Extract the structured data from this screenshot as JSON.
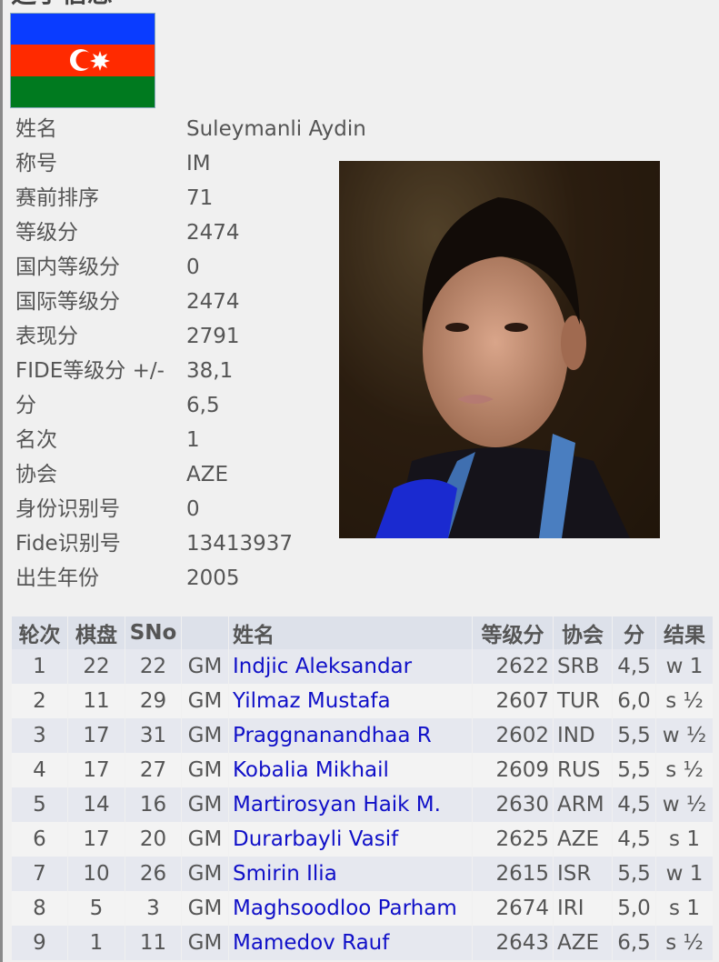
{
  "heading": "选手信息",
  "flag": {
    "country": "Azerbaijan",
    "colors": [
      "#0a3cff",
      "#ff2a00",
      "#007a1f"
    ]
  },
  "player": [
    {
      "label": "姓名",
      "value": "Suleymanli Aydin"
    },
    {
      "label": "称号",
      "value": "IM"
    },
    {
      "label": "赛前排序",
      "value": "71"
    },
    {
      "label": "等级分",
      "value": "2474"
    },
    {
      "label": "国内等级分",
      "value": "0"
    },
    {
      "label": "国际等级分",
      "value": "2474"
    },
    {
      "label": "表现分",
      "value": "2791"
    },
    {
      "label": "FIDE等级分 +/-",
      "value": "38,1"
    },
    {
      "label": "分",
      "value": "6,5"
    },
    {
      "label": "名次",
      "value": "1"
    },
    {
      "label": "协会",
      "value": "AZE"
    },
    {
      "label": "身份识别号",
      "value": "0"
    },
    {
      "label": "Fide识别号",
      "value": "13413937"
    },
    {
      "label": "出生年份",
      "value": "2005"
    }
  ],
  "table": {
    "headers": [
      "轮次",
      "棋盘",
      "SNo",
      "",
      "姓名",
      "等级分",
      "协会",
      "分",
      "结果"
    ],
    "rows": [
      [
        "1",
        "22",
        "22",
        "GM",
        "Indjic Aleksandar",
        "2622",
        "SRB",
        "4,5",
        "w 1"
      ],
      [
        "2",
        "11",
        "29",
        "GM",
        "Yilmaz Mustafa",
        "2607",
        "TUR",
        "6,0",
        "s ½"
      ],
      [
        "3",
        "17",
        "31",
        "GM",
        "Praggnanandhaa R",
        "2602",
        "IND",
        "5,5",
        "w ½"
      ],
      [
        "4",
        "17",
        "27",
        "GM",
        "Kobalia Mikhail",
        "2609",
        "RUS",
        "5,5",
        "s ½"
      ],
      [
        "5",
        "14",
        "16",
        "GM",
        "Martirosyan Haik M.",
        "2630",
        "ARM",
        "4,5",
        "w ½"
      ],
      [
        "6",
        "17",
        "20",
        "GM",
        "Durarbayli Vasif",
        "2625",
        "AZE",
        "4,5",
        "s 1"
      ],
      [
        "7",
        "10",
        "26",
        "GM",
        "Smirin Ilia",
        "2615",
        "ISR",
        "5,5",
        "w 1"
      ],
      [
        "8",
        "5",
        "3",
        "GM",
        "Maghsoodloo Parham",
        "2674",
        "IRI",
        "5,0",
        "s 1"
      ],
      [
        "9",
        "1",
        "11",
        "GM",
        "Mamedov Rauf",
        "2643",
        "AZE",
        "6,5",
        "s ½"
      ]
    ]
  }
}
